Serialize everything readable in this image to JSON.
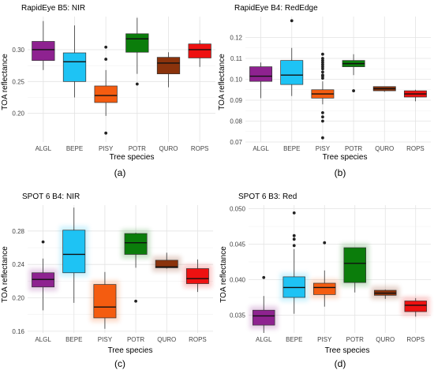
{
  "colors": {
    "panel_bg": "#ffffff",
    "grid": "#e3e3e3",
    "axis_text": "#444444",
    "title_text": "#000000",
    "outlier": "#222222"
  },
  "species_colors": {
    "ALGL": "#8e2290",
    "BEPE": "#1ec3f4",
    "PISY": "#f45c10",
    "POTR": "#0b7d0b",
    "QURO": "#8b330c",
    "ROPS": "#ee1111"
  },
  "chart_data": [
    {
      "type": "box",
      "panel_title": "RapidEye B5: NIR",
      "caption": "(a)",
      "xlabel": "Tree species",
      "ylabel": "TOA  reflectance",
      "categories": [
        "ALGL",
        "BEPE",
        "PISY",
        "POTR",
        "QURO",
        "ROPS"
      ],
      "ylim": [
        0.155,
        0.352
      ],
      "yticks": [
        0.2,
        0.25,
        0.3
      ],
      "ytick_labels": [
        "0.20",
        "0.25",
        "0.30"
      ],
      "grid": true,
      "halo": false,
      "boxes": [
        {
          "category": "ALGL",
          "whisker_low": 0.268,
          "q1": 0.283,
          "median": 0.3,
          "q3": 0.313,
          "whisker_high": 0.345,
          "outliers": []
        },
        {
          "category": "BEPE",
          "whisker_low": 0.225,
          "q1": 0.25,
          "median": 0.281,
          "q3": 0.295,
          "whisker_high": 0.338,
          "outliers": []
        },
        {
          "category": "PISY",
          "whisker_low": 0.196,
          "q1": 0.217,
          "median": 0.228,
          "q3": 0.243,
          "whisker_high": 0.268,
          "outliers": [
            0.304,
            0.285,
            0.169
          ]
        },
        {
          "category": "POTR",
          "whisker_low": 0.262,
          "q1": 0.296,
          "median": 0.317,
          "q3": 0.325,
          "whisker_high": 0.35,
          "outliers": [
            0.246
          ]
        },
        {
          "category": "QURO",
          "whisker_low": 0.241,
          "q1": 0.262,
          "median": 0.279,
          "q3": 0.288,
          "whisker_high": 0.296,
          "outliers": []
        },
        {
          "category": "ROPS",
          "whisker_low": 0.273,
          "q1": 0.287,
          "median": 0.3,
          "q3": 0.309,
          "whisker_high": 0.315,
          "outliers": []
        }
      ]
    },
    {
      "type": "box",
      "panel_title": "RapidEye B4: RedEdge",
      "caption": "(b)",
      "xlabel": "Tree species",
      "ylabel": "TOA  reflectance",
      "categories": [
        "ALGL",
        "BEPE",
        "PISY",
        "POTR",
        "QURO",
        "ROPS"
      ],
      "ylim": [
        0.07,
        0.13
      ],
      "yticks": [
        0.07,
        0.08,
        0.09,
        0.1,
        0.11,
        0.12
      ],
      "ytick_labels": [
        "0.07",
        "0.08",
        "0.09",
        "0.10",
        "0.11",
        "0.12"
      ],
      "grid": true,
      "halo": false,
      "boxes": [
        {
          "category": "ALGL",
          "whisker_low": 0.091,
          "q1": 0.099,
          "median": 0.1015,
          "q3": 0.106,
          "whisker_high": 0.108,
          "outliers": []
        },
        {
          "category": "BEPE",
          "whisker_low": 0.092,
          "q1": 0.0975,
          "median": 0.102,
          "q3": 0.109,
          "whisker_high": 0.115,
          "outliers": [
            0.128
          ]
        },
        {
          "category": "PISY",
          "whisker_low": 0.088,
          "q1": 0.091,
          "median": 0.093,
          "q3": 0.095,
          "whisker_high": 0.099,
          "outliers": [
            0.1005,
            0.1015,
            0.102,
            0.1035,
            0.105,
            0.106,
            0.107,
            0.108,
            0.109,
            0.11,
            0.112,
            0.084,
            0.082,
            0.08,
            0.072
          ]
        },
        {
          "category": "POTR",
          "whisker_low": 0.102,
          "q1": 0.106,
          "median": 0.1075,
          "q3": 0.109,
          "whisker_high": 0.112,
          "outliers": [
            0.0945
          ]
        },
        {
          "category": "QURO",
          "whisker_low": 0.094,
          "q1": 0.0945,
          "median": 0.0955,
          "q3": 0.0965,
          "whisker_high": 0.0965,
          "outliers": []
        },
        {
          "category": "ROPS",
          "whisker_low": 0.0895,
          "q1": 0.0915,
          "median": 0.093,
          "q3": 0.0945,
          "whisker_high": 0.095,
          "outliers": []
        }
      ]
    },
    {
      "type": "box",
      "panel_title": "SPOT 6 B4: NIR",
      "caption": "(c)",
      "xlabel": "Tree species",
      "ylabel": "TOA  reflectance",
      "categories": [
        "ALGL",
        "BEPE",
        "PISY",
        "POTR",
        "QURO",
        "ROPS"
      ],
      "ylim": [
        0.158,
        0.311
      ],
      "yticks": [
        0.16,
        0.2,
        0.24,
        0.28
      ],
      "ytick_labels": [
        "0.16",
        "0.20",
        "0.24",
        "0.28"
      ],
      "grid": true,
      "halo": true,
      "boxes": [
        {
          "category": "ALGL",
          "whisker_low": 0.185,
          "q1": 0.213,
          "median": 0.222,
          "q3": 0.23,
          "whisker_high": 0.247,
          "outliers": [
            0.267
          ]
        },
        {
          "category": "BEPE",
          "whisker_low": 0.194,
          "q1": 0.23,
          "median": 0.252,
          "q3": 0.281,
          "whisker_high": 0.308,
          "outliers": []
        },
        {
          "category": "PISY",
          "whisker_low": 0.163,
          "q1": 0.176,
          "median": 0.189,
          "q3": 0.216,
          "whisker_high": 0.231,
          "outliers": []
        },
        {
          "category": "POTR",
          "whisker_low": 0.236,
          "q1": 0.252,
          "median": 0.266,
          "q3": 0.277,
          "whisker_high": 0.278,
          "outliers": [
            0.196
          ]
        },
        {
          "category": "QURO",
          "whisker_low": 0.235,
          "q1": 0.236,
          "median": 0.237,
          "q3": 0.245,
          "whisker_high": 0.254,
          "outliers": []
        },
        {
          "category": "ROPS",
          "whisker_low": 0.207,
          "q1": 0.217,
          "median": 0.223,
          "q3": 0.235,
          "whisker_high": 0.246,
          "outliers": []
        }
      ]
    },
    {
      "type": "box",
      "panel_title": "SPOT 6 B3: Red",
      "caption": "(d)",
      "xlabel": "Tree species",
      "ylabel": "TOA  reflectance",
      "categories": [
        "ALGL",
        "BEPE",
        "PISY",
        "POTR",
        "QURO",
        "ROPS"
      ],
      "ylim": [
        0.0325,
        0.0505
      ],
      "yticks": [
        0.035,
        0.04,
        0.045,
        0.05
      ],
      "ytick_labels": [
        "0.035",
        "0.040",
        "0.045",
        "0.050"
      ],
      "grid": true,
      "halo": true,
      "boxes": [
        {
          "category": "ALGL",
          "whisker_low": 0.0325,
          "q1": 0.0336,
          "median": 0.0349,
          "q3": 0.0357,
          "whisker_high": 0.0377,
          "outliers": [
            0.0403
          ]
        },
        {
          "category": "BEPE",
          "whisker_low": 0.0352,
          "q1": 0.0375,
          "median": 0.0389,
          "q3": 0.0404,
          "whisker_high": 0.0443,
          "outliers": [
            0.0448,
            0.0457,
            0.0462,
            0.0494
          ]
        },
        {
          "category": "PISY",
          "whisker_low": 0.0362,
          "q1": 0.0379,
          "median": 0.0389,
          "q3": 0.0395,
          "whisker_high": 0.0413,
          "outliers": [
            0.0452
          ]
        },
        {
          "category": "POTR",
          "whisker_low": 0.0382,
          "q1": 0.0396,
          "median": 0.0423,
          "q3": 0.0445,
          "whisker_high": 0.0445,
          "outliers": []
        },
        {
          "category": "QURO",
          "whisker_low": 0.0373,
          "q1": 0.0378,
          "median": 0.0381,
          "q3": 0.0385,
          "whisker_high": 0.0386,
          "outliers": []
        },
        {
          "category": "ROPS",
          "whisker_low": 0.0348,
          "q1": 0.0355,
          "median": 0.0364,
          "q3": 0.037,
          "whisker_high": 0.0374,
          "outliers": []
        }
      ]
    }
  ]
}
